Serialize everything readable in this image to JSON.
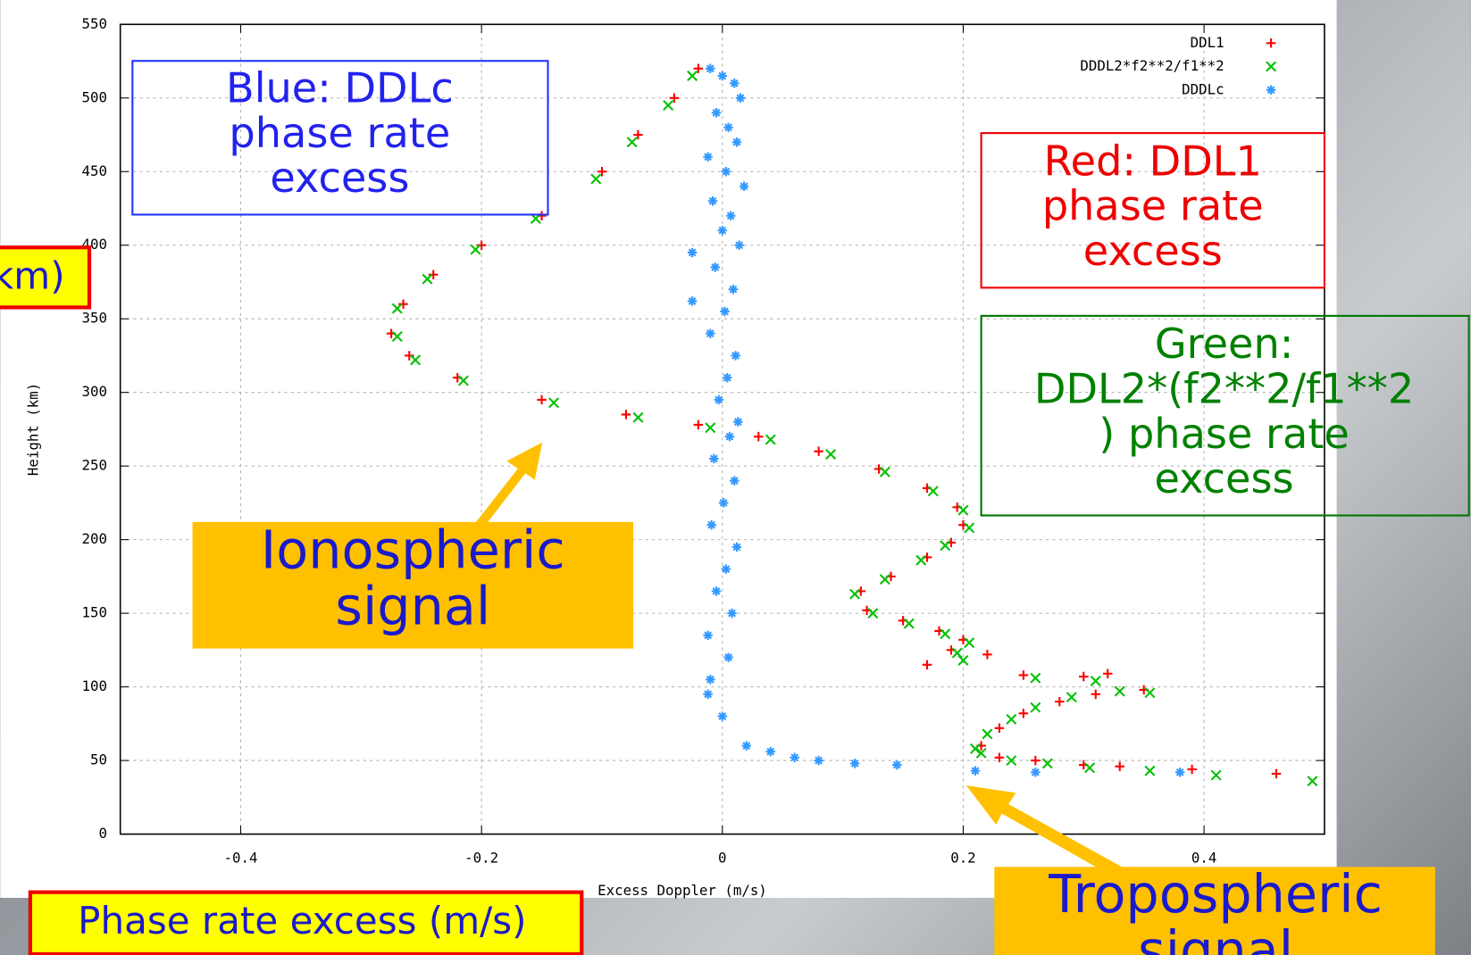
{
  "chart_data": {
    "type": "scatter",
    "xlabel": "Excess Doppler (m/s)",
    "ylabel": "Height (km)",
    "xlim": [
      -0.5,
      0.5
    ],
    "ylim": [
      0,
      550
    ],
    "xticks": [
      -0.4,
      -0.2,
      0,
      0.2,
      0.4
    ],
    "yticks": [
      0,
      50,
      100,
      150,
      200,
      250,
      300,
      350,
      400,
      450,
      500,
      550
    ],
    "grid": true,
    "legend": "upper right",
    "series": [
      {
        "name": "DDL1",
        "color": "#ff0000",
        "marker": "plus",
        "x": [
          -0.02,
          -0.04,
          -0.07,
          -0.1,
          -0.15,
          -0.2,
          -0.24,
          -0.265,
          -0.275,
          -0.26,
          -0.22,
          -0.15,
          -0.08,
          -0.02,
          0.03,
          0.08,
          0.13,
          0.17,
          0.195,
          0.2,
          0.19,
          0.17,
          0.14,
          0.115,
          0.12,
          0.15,
          0.18,
          0.2,
          0.19,
          0.17,
          0.22,
          0.215,
          0.23,
          0.25,
          0.28,
          0.31,
          0.35,
          0.25,
          0.3,
          0.32,
          0.23,
          0.26,
          0.3,
          0.33,
          0.39,
          0.46
        ],
        "values": [
          520,
          500,
          475,
          450,
          420,
          400,
          380,
          360,
          340,
          325,
          310,
          295,
          285,
          278,
          270,
          260,
          248,
          235,
          222,
          210,
          198,
          188,
          175,
          165,
          152,
          145,
          138,
          132,
          125,
          115,
          122,
          60,
          72,
          82,
          90,
          95,
          98,
          108,
          107,
          109,
          52,
          50,
          47,
          46,
          44,
          41
        ]
      },
      {
        "name": "DDDL2*f2**2/f1**2",
        "color": "#00c000",
        "marker": "cross",
        "x": [
          -0.025,
          -0.045,
          -0.075,
          -0.105,
          -0.155,
          -0.205,
          -0.245,
          -0.27,
          -0.27,
          -0.255,
          -0.215,
          -0.14,
          -0.07,
          -0.01,
          0.04,
          0.09,
          0.135,
          0.175,
          0.2,
          0.205,
          0.185,
          0.165,
          0.135,
          0.11,
          0.125,
          0.155,
          0.185,
          0.205,
          0.195,
          0.2,
          0.21,
          0.22,
          0.24,
          0.26,
          0.29,
          0.33,
          0.355,
          0.26,
          0.31,
          0.215,
          0.24,
          0.27,
          0.305,
          0.355,
          0.41,
          0.49
        ],
        "values": [
          515,
          495,
          470,
          445,
          418,
          397,
          377,
          357,
          338,
          322,
          308,
          293,
          283,
          276,
          268,
          258,
          246,
          233,
          220,
          208,
          196,
          186,
          173,
          163,
          150,
          143,
          136,
          130,
          123,
          118,
          58,
          68,
          78,
          86,
          93,
          97,
          96,
          106,
          104,
          55,
          50,
          48,
          45,
          43,
          40,
          36
        ]
      },
      {
        "name": "DDDLc",
        "color": "#3399ff",
        "marker": "star",
        "x": [
          -0.01,
          0.0,
          0.01,
          0.015,
          -0.005,
          0.005,
          0.012,
          -0.012,
          0.003,
          0.018,
          -0.008,
          0.007,
          0.0,
          0.014,
          -0.006,
          0.009,
          0.002,
          -0.01,
          0.011,
          0.004,
          -0.003,
          0.013,
          0.006,
          -0.007,
          0.01,
          0.001,
          -0.009,
          0.012,
          0.003,
          -0.005,
          0.008,
          -0.012,
          0.005,
          -0.025,
          -0.025,
          -0.01,
          -0.012,
          0.0,
          0.02,
          0.04,
          0.06,
          0.08,
          0.11,
          0.145,
          0.21,
          0.26,
          0.38
        ],
        "values": [
          520,
          515,
          510,
          500,
          490,
          480,
          470,
          460,
          450,
          440,
          430,
          420,
          410,
          400,
          385,
          370,
          355,
          340,
          325,
          310,
          295,
          280,
          270,
          255,
          240,
          225,
          210,
          195,
          180,
          165,
          150,
          135,
          120,
          395,
          362,
          105,
          95,
          80,
          60,
          56,
          52,
          50,
          48,
          47,
          43,
          42,
          42
        ]
      }
    ]
  },
  "annotations": [
    {
      "lines": [
        "Blue: DDLc",
        "phase rate",
        "excess"
      ]
    },
    {
      "lines": [
        "Red: DDL1",
        "phase rate",
        "excess"
      ]
    },
    {
      "lines": [
        "Green:",
        "DDL2*(f2**2/f1**2",
        ") phase rate",
        "excess"
      ]
    },
    {
      "lines": [
        "Ionospheric",
        "signal"
      ]
    },
    {
      "lines": [
        "Tropospheric",
        "signal"
      ]
    },
    {
      "lines": [
        "Phase rate excess (m/s)"
      ]
    },
    {
      "lines": [
        "km)"
      ]
    }
  ]
}
